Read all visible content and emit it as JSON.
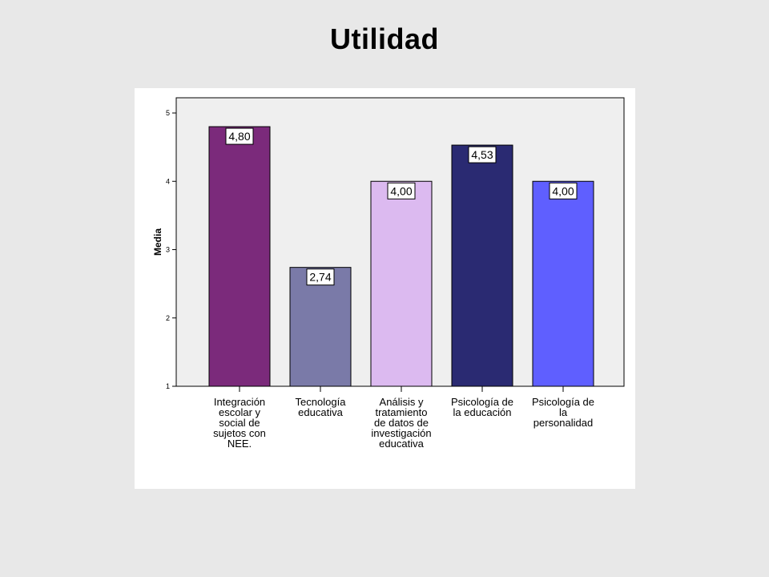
{
  "slide": {
    "title": "Utilidad"
  },
  "chart_data": {
    "type": "bar",
    "title": "Utilidad",
    "ylabel": "Media",
    "xlabel": "",
    "ylim": [
      1,
      5
    ],
    "yticks": [
      "1",
      "2",
      "3",
      "4",
      "5"
    ],
    "grid": false,
    "legend": "none",
    "plot_background": "#efefef",
    "categories": [
      [
        "Integración",
        "escolar y",
        "social de",
        "sujetos con",
        "NEE."
      ],
      [
        "Tecnología",
        "educativa"
      ],
      [
        "Análisis y",
        "tratamiento",
        "de datos de",
        "investigación",
        "educativa"
      ],
      [
        "Psicología de",
        "la educación"
      ],
      [
        "Psicología de",
        "la",
        "personalidad"
      ]
    ],
    "values": [
      4.8,
      2.74,
      4.0,
      4.53,
      4.0
    ],
    "value_labels": [
      "4,80",
      "2,74",
      "4,00",
      "4,53",
      "4,00"
    ],
    "colors": [
      "#7b2a7b",
      "#7a7aa8",
      "#dcbaf0",
      "#2a2a72",
      "#5f5fff"
    ]
  }
}
